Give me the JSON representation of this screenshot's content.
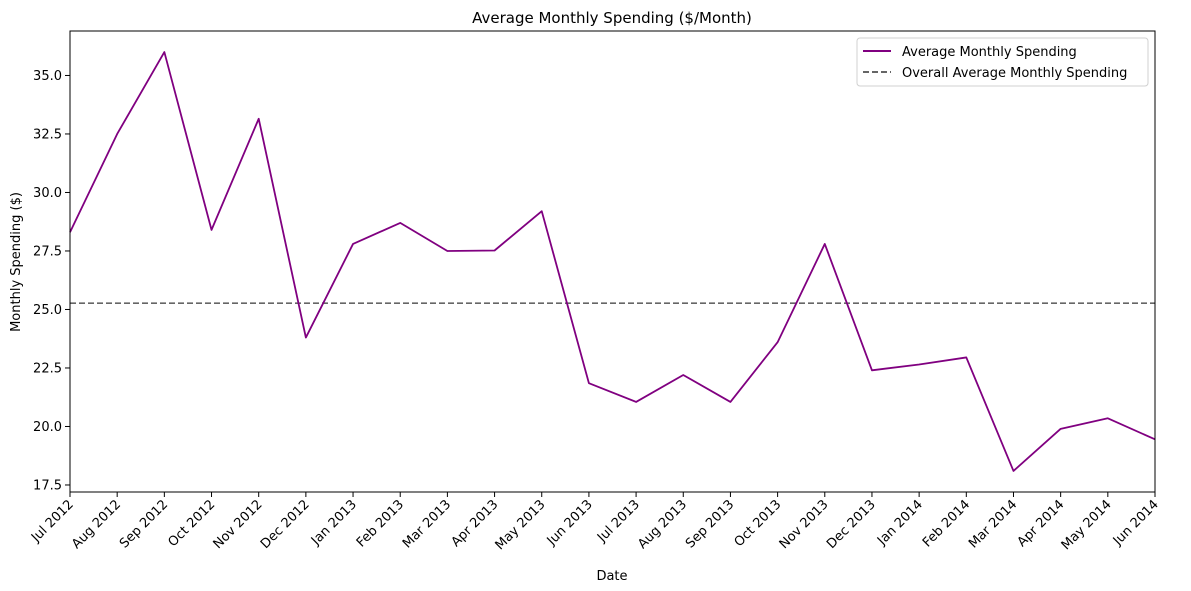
{
  "chart_data": {
    "type": "line",
    "title": "Average Monthly Spending ($/Month)",
    "xlabel": "Date",
    "ylabel": "Monthly Spending ($)",
    "x": [
      "Jul 2012",
      "Aug 2012",
      "Sep 2012",
      "Oct 2012",
      "Nov 2012",
      "Dec 2012",
      "Jan 2013",
      "Feb 2013",
      "Mar 2013",
      "Apr 2013",
      "May 2013",
      "Jun 2013",
      "Jul 2013",
      "Aug 2013",
      "Sep 2013",
      "Oct 2013",
      "Nov 2013",
      "Dec 2013",
      "Jan 2014",
      "Feb 2014",
      "Mar 2014",
      "Apr 2014",
      "May 2014",
      "Jun 2014"
    ],
    "ylim": [
      17.2,
      36.9
    ],
    "yticks": [
      17.5,
      20.0,
      22.5,
      25.0,
      27.5,
      30.0,
      32.5,
      35.0
    ],
    "ytick_labels": [
      "17.5",
      "20.0",
      "22.5",
      "25.0",
      "27.5",
      "30.0",
      "32.5",
      "35.0"
    ],
    "series": [
      {
        "name": "Average Monthly Spending",
        "color": "#800080",
        "style": "solid",
        "values": [
          28.3,
          32.5,
          36.0,
          28.4,
          33.15,
          23.8,
          27.8,
          28.7,
          27.5,
          27.52,
          29.2,
          21.85,
          21.05,
          22.2,
          21.05,
          23.6,
          27.8,
          22.4,
          22.65,
          22.95,
          18.1,
          19.9,
          20.35,
          19.45
        ]
      }
    ],
    "reference_lines": [
      {
        "name": "Overall Average Monthly Spending",
        "color": "#666666",
        "style": "dashed",
        "value": 25.27
      }
    ],
    "legend_position": "top-right",
    "grid": false
  }
}
